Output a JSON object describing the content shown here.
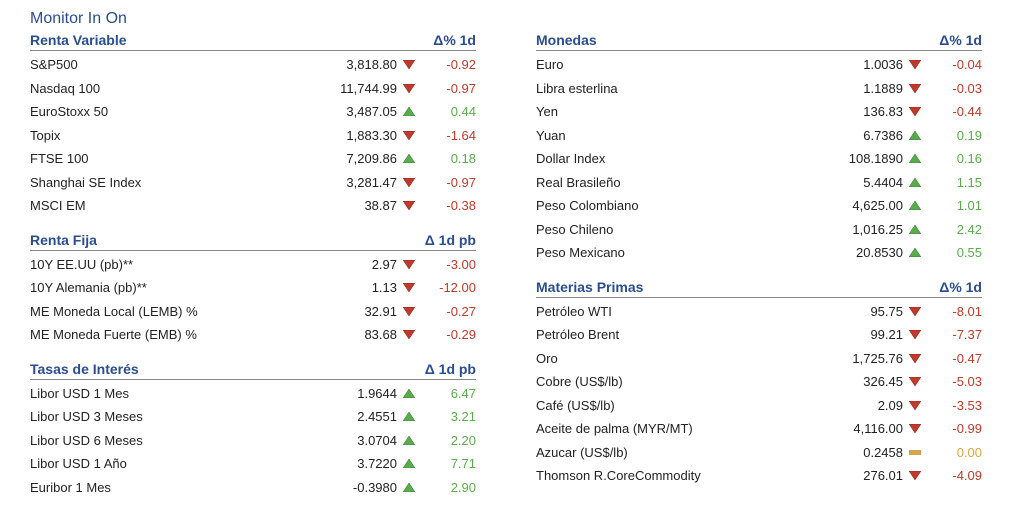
{
  "page_title": "Monitor In On",
  "colors": {
    "header": "#2a4d8f",
    "pos": "#5aab4c",
    "neg": "#c0392b",
    "neutral": "#d8a642"
  },
  "left_sections": [
    {
      "title": "Renta Variable",
      "delta_label": "Δ% 1d",
      "rows": [
        {
          "name": "S&P500",
          "value": "3,818.80",
          "dir": "down",
          "change": "-0.92"
        },
        {
          "name": "Nasdaq 100",
          "value": "11,744.99",
          "dir": "down",
          "change": "-0.97"
        },
        {
          "name": "EuroStoxx 50",
          "value": "3,487.05",
          "dir": "up",
          "change": "0.44"
        },
        {
          "name": "Topix",
          "value": "1,883.30",
          "dir": "down",
          "change": "-1.64"
        },
        {
          "name": "FTSE 100",
          "value": "7,209.86",
          "dir": "up",
          "change": "0.18"
        },
        {
          "name": "Shanghai SE Index",
          "value": "3,281.47",
          "dir": "down",
          "change": "-0.97"
        },
        {
          "name": "MSCI EM",
          "value": "38.87",
          "dir": "down",
          "change": "-0.38"
        }
      ]
    },
    {
      "title": "Renta Fija",
      "delta_label": "Δ 1d pb",
      "rows": [
        {
          "name": "10Y EE.UU (pb)**",
          "value": "2.97",
          "dir": "down",
          "change": "-3.00"
        },
        {
          "name": "10Y Alemania (pb)**",
          "value": "1.13",
          "dir": "down",
          "change": "-12.00"
        },
        {
          "name": "ME Moneda Local (LEMB) %",
          "value": "32.91",
          "dir": "down",
          "change": "-0.27"
        },
        {
          "name": "ME Moneda Fuerte (EMB) %",
          "value": "83.68",
          "dir": "down",
          "change": "-0.29"
        }
      ]
    },
    {
      "title": "Tasas de Interés",
      "delta_label": "Δ 1d pb",
      "rows": [
        {
          "name": "Libor USD 1 Mes",
          "value": "1.9644",
          "dir": "up",
          "change": "6.47"
        },
        {
          "name": "Libor USD 3 Meses",
          "value": "2.4551",
          "dir": "up",
          "change": "3.21"
        },
        {
          "name": "Libor USD 6 Meses",
          "value": "3.0704",
          "dir": "up",
          "change": "2.20"
        },
        {
          "name": "Libor USD 1 Año",
          "value": "3.7220",
          "dir": "up",
          "change": "7.71"
        },
        {
          "name": "Euribor 1 Mes",
          "value": "-0.3980",
          "dir": "up",
          "change": "2.90"
        }
      ]
    }
  ],
  "right_sections": [
    {
      "title": "Monedas",
      "delta_label": "Δ% 1d",
      "rows": [
        {
          "name": "Euro",
          "value": "1.0036",
          "dir": "down",
          "change": "-0.04"
        },
        {
          "name": "Libra esterlina",
          "value": "1.1889",
          "dir": "down",
          "change": "-0.03"
        },
        {
          "name": "Yen",
          "value": "136.83",
          "dir": "down",
          "change": "-0.44"
        },
        {
          "name": "Yuan",
          "value": "6.7386",
          "dir": "up",
          "change": "0.19"
        },
        {
          "name": "Dollar Index",
          "value": "108.1890",
          "dir": "up",
          "change": "0.16"
        },
        {
          "name": "Real Brasileño",
          "value": "5.4404",
          "dir": "up",
          "change": "1.15"
        },
        {
          "name": "Peso Colombiano",
          "value": "4,625.00",
          "dir": "up",
          "change": "1.01"
        },
        {
          "name": "Peso Chileno",
          "value": "1,016.25",
          "dir": "up",
          "change": "2.42"
        },
        {
          "name": "Peso Mexicano",
          "value": "20.8530",
          "dir": "up",
          "change": "0.55"
        }
      ]
    },
    {
      "title": "Materias Primas",
      "delta_label": "Δ% 1d",
      "rows": [
        {
          "name": "Petróleo WTI",
          "value": "95.75",
          "dir": "down",
          "change": "-8.01"
        },
        {
          "name": "Petróleo Brent",
          "value": "99.21",
          "dir": "down",
          "change": "-7.37"
        },
        {
          "name": "Oro",
          "value": "1,725.76",
          "dir": "down",
          "change": "-0.47"
        },
        {
          "name": "Cobre (US$/lb)",
          "value": "326.45",
          "dir": "down",
          "change": "-5.03"
        },
        {
          "name": "Café (US$/lb)",
          "value": "2.09",
          "dir": "down",
          "change": "-3.53"
        },
        {
          "name": "Aceite de palma (MYR/MT)",
          "value": "4,116.00",
          "dir": "down",
          "change": "-0.99"
        },
        {
          "name": "Azucar (US$/lb)",
          "value": "0.2458",
          "dir": "flat",
          "change": "0.00"
        },
        {
          "name": "Thomson R.CoreCommodity",
          "value": "276.01",
          "dir": "down",
          "change": "-4.09"
        }
      ]
    }
  ]
}
